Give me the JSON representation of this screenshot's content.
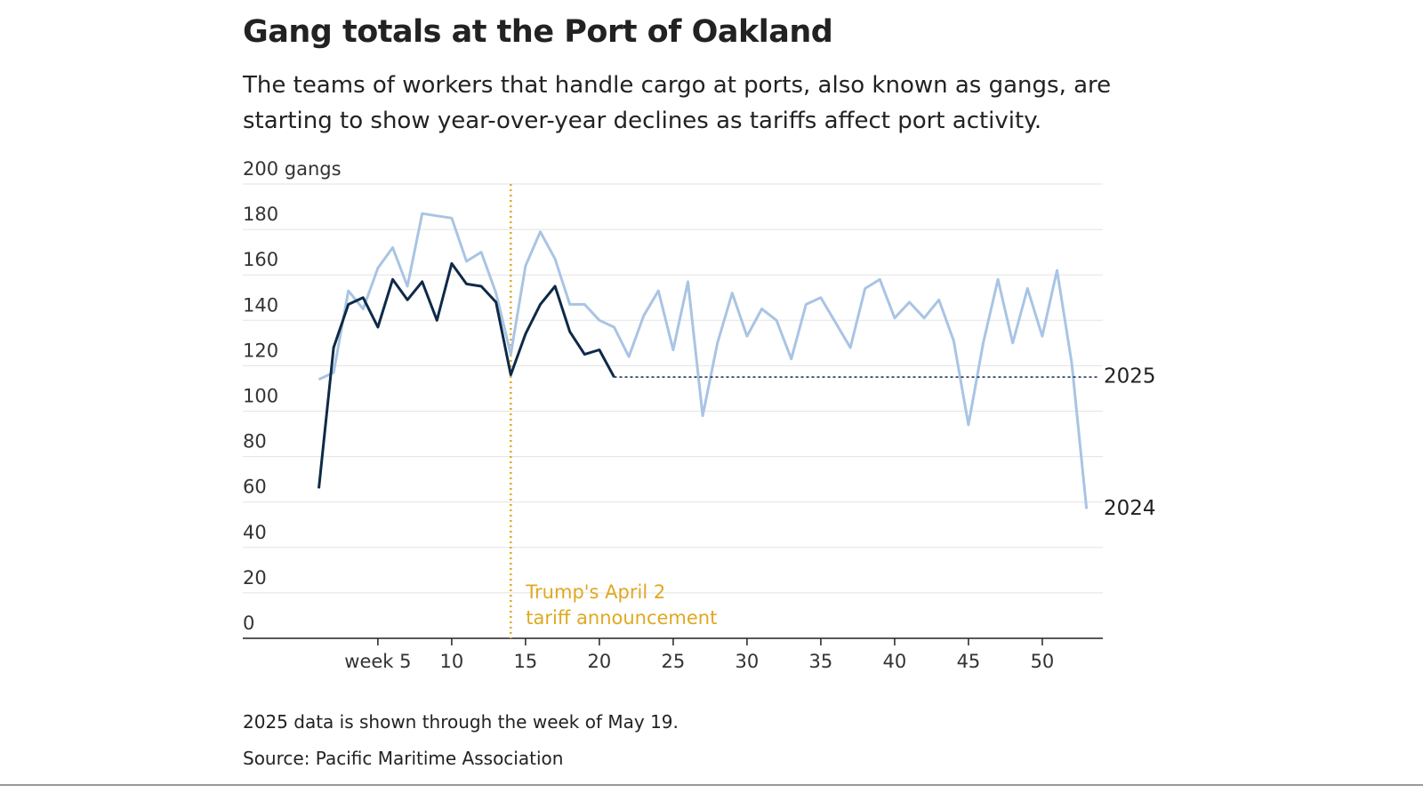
{
  "chart_data": {
    "type": "line",
    "title": "Gang totals at the Port of Oakland",
    "subtitle": "The teams of workers that handle cargo at ports, also known as gangs, are starting to show year-over-year declines as tariffs affect port activity.",
    "x": [
      1,
      2,
      3,
      4,
      5,
      6,
      7,
      8,
      9,
      10,
      11,
      12,
      13,
      14,
      15,
      16,
      17,
      18,
      19,
      20,
      21,
      22,
      23,
      24,
      25,
      26,
      27,
      28,
      29,
      30,
      31,
      32,
      33,
      34,
      35,
      36,
      37,
      38,
      39,
      40,
      41,
      42,
      43,
      44,
      45,
      46,
      47,
      48,
      49,
      50,
      51,
      52,
      53
    ],
    "series": [
      {
        "name": "2024",
        "color": "#a9c4e4",
        "values": [
          114,
          117,
          153,
          145,
          163,
          172,
          155,
          187,
          186,
          185,
          166,
          170,
          152,
          125,
          164,
          179,
          167,
          147,
          147,
          140,
          137,
          124,
          142,
          153,
          127,
          157,
          98,
          130,
          152,
          133,
          145,
          140,
          123,
          147,
          150,
          139,
          128,
          154,
          158,
          141,
          148,
          141,
          149,
          131,
          94,
          130,
          158,
          130,
          154,
          133,
          162,
          121,
          57
        ]
      },
      {
        "name": "2025",
        "color": "#0e2a47",
        "values": [
          66,
          128,
          147,
          150,
          137,
          158,
          149,
          157,
          140,
          165,
          156,
          155,
          148,
          116,
          134,
          147,
          155,
          135,
          125,
          127,
          115,
          null,
          null,
          null,
          null,
          null,
          null,
          null,
          null,
          null,
          null,
          null,
          null,
          null,
          null,
          null,
          null,
          null,
          null,
          null,
          null,
          null,
          null,
          null,
          null,
          null,
          null,
          null,
          null,
          null,
          null,
          null,
          null
        ]
      }
    ],
    "xlim": [
      -4.15,
      54.1
    ],
    "xticks": [
      {
        "value": 5,
        "label": "week 5"
      },
      10,
      15,
      20,
      25,
      30,
      35,
      40,
      45,
      50
    ],
    "ylim": [
      0,
      200
    ],
    "yticks": [
      0,
      20,
      40,
      60,
      80,
      100,
      120,
      140,
      160,
      180,
      {
        "value": 200,
        "label": "200 gangs"
      }
    ],
    "grid": true,
    "annotation": {
      "x": 14,
      "lines": [
        "Trump's April 2",
        "tariff announcement"
      ],
      "color": "#e0a820"
    },
    "notes": [
      "2025 data is shown through the week of May 19.",
      "Source: Pacific Maritime Association"
    ]
  }
}
